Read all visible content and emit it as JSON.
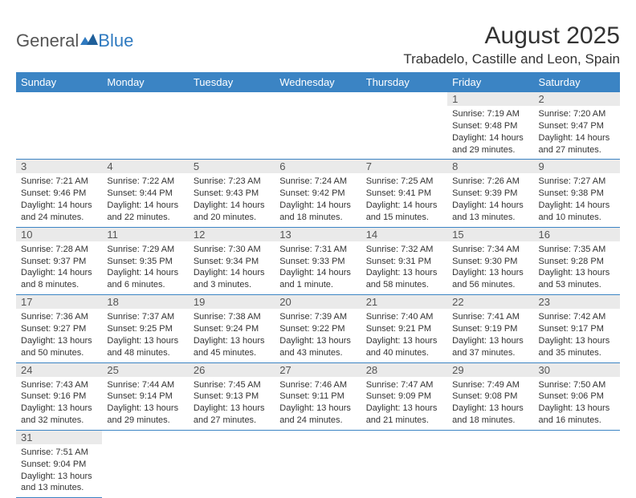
{
  "logo": {
    "general": "General",
    "blue": "Blue"
  },
  "title": "August 2025",
  "location": "Trabadelo, Castille and Leon, Spain",
  "colors": {
    "header_bg": "#3b84c4",
    "header_fg": "#ffffff",
    "daynum_bg": "#eaeaea",
    "rule": "#3b84c4",
    "page_bg": "#ffffff",
    "text": "#333333"
  },
  "weekdays": [
    "Sunday",
    "Monday",
    "Tuesday",
    "Wednesday",
    "Thursday",
    "Friday",
    "Saturday"
  ],
  "first_weekday_index": 5,
  "days": [
    {
      "n": 1,
      "sunrise": "7:19 AM",
      "sunset": "9:48 PM",
      "daylight": "14 hours and 29 minutes."
    },
    {
      "n": 2,
      "sunrise": "7:20 AM",
      "sunset": "9:47 PM",
      "daylight": "14 hours and 27 minutes."
    },
    {
      "n": 3,
      "sunrise": "7:21 AM",
      "sunset": "9:46 PM",
      "daylight": "14 hours and 24 minutes."
    },
    {
      "n": 4,
      "sunrise": "7:22 AM",
      "sunset": "9:44 PM",
      "daylight": "14 hours and 22 minutes."
    },
    {
      "n": 5,
      "sunrise": "7:23 AM",
      "sunset": "9:43 PM",
      "daylight": "14 hours and 20 minutes."
    },
    {
      "n": 6,
      "sunrise": "7:24 AM",
      "sunset": "9:42 PM",
      "daylight": "14 hours and 18 minutes."
    },
    {
      "n": 7,
      "sunrise": "7:25 AM",
      "sunset": "9:41 PM",
      "daylight": "14 hours and 15 minutes."
    },
    {
      "n": 8,
      "sunrise": "7:26 AM",
      "sunset": "9:39 PM",
      "daylight": "14 hours and 13 minutes."
    },
    {
      "n": 9,
      "sunrise": "7:27 AM",
      "sunset": "9:38 PM",
      "daylight": "14 hours and 10 minutes."
    },
    {
      "n": 10,
      "sunrise": "7:28 AM",
      "sunset": "9:37 PM",
      "daylight": "14 hours and 8 minutes."
    },
    {
      "n": 11,
      "sunrise": "7:29 AM",
      "sunset": "9:35 PM",
      "daylight": "14 hours and 6 minutes."
    },
    {
      "n": 12,
      "sunrise": "7:30 AM",
      "sunset": "9:34 PM",
      "daylight": "14 hours and 3 minutes."
    },
    {
      "n": 13,
      "sunrise": "7:31 AM",
      "sunset": "9:33 PM",
      "daylight": "14 hours and 1 minute."
    },
    {
      "n": 14,
      "sunrise": "7:32 AM",
      "sunset": "9:31 PM",
      "daylight": "13 hours and 58 minutes."
    },
    {
      "n": 15,
      "sunrise": "7:34 AM",
      "sunset": "9:30 PM",
      "daylight": "13 hours and 56 minutes."
    },
    {
      "n": 16,
      "sunrise": "7:35 AM",
      "sunset": "9:28 PM",
      "daylight": "13 hours and 53 minutes."
    },
    {
      "n": 17,
      "sunrise": "7:36 AM",
      "sunset": "9:27 PM",
      "daylight": "13 hours and 50 minutes."
    },
    {
      "n": 18,
      "sunrise": "7:37 AM",
      "sunset": "9:25 PM",
      "daylight": "13 hours and 48 minutes."
    },
    {
      "n": 19,
      "sunrise": "7:38 AM",
      "sunset": "9:24 PM",
      "daylight": "13 hours and 45 minutes."
    },
    {
      "n": 20,
      "sunrise": "7:39 AM",
      "sunset": "9:22 PM",
      "daylight": "13 hours and 43 minutes."
    },
    {
      "n": 21,
      "sunrise": "7:40 AM",
      "sunset": "9:21 PM",
      "daylight": "13 hours and 40 minutes."
    },
    {
      "n": 22,
      "sunrise": "7:41 AM",
      "sunset": "9:19 PM",
      "daylight": "13 hours and 37 minutes."
    },
    {
      "n": 23,
      "sunrise": "7:42 AM",
      "sunset": "9:17 PM",
      "daylight": "13 hours and 35 minutes."
    },
    {
      "n": 24,
      "sunrise": "7:43 AM",
      "sunset": "9:16 PM",
      "daylight": "13 hours and 32 minutes."
    },
    {
      "n": 25,
      "sunrise": "7:44 AM",
      "sunset": "9:14 PM",
      "daylight": "13 hours and 29 minutes."
    },
    {
      "n": 26,
      "sunrise": "7:45 AM",
      "sunset": "9:13 PM",
      "daylight": "13 hours and 27 minutes."
    },
    {
      "n": 27,
      "sunrise": "7:46 AM",
      "sunset": "9:11 PM",
      "daylight": "13 hours and 24 minutes."
    },
    {
      "n": 28,
      "sunrise": "7:47 AM",
      "sunset": "9:09 PM",
      "daylight": "13 hours and 21 minutes."
    },
    {
      "n": 29,
      "sunrise": "7:49 AM",
      "sunset": "9:08 PM",
      "daylight": "13 hours and 18 minutes."
    },
    {
      "n": 30,
      "sunrise": "7:50 AM",
      "sunset": "9:06 PM",
      "daylight": "13 hours and 16 minutes."
    },
    {
      "n": 31,
      "sunrise": "7:51 AM",
      "sunset": "9:04 PM",
      "daylight": "13 hours and 13 minutes."
    }
  ],
  "labels": {
    "sunrise": "Sunrise:",
    "sunset": "Sunset:",
    "daylight": "Daylight:"
  }
}
